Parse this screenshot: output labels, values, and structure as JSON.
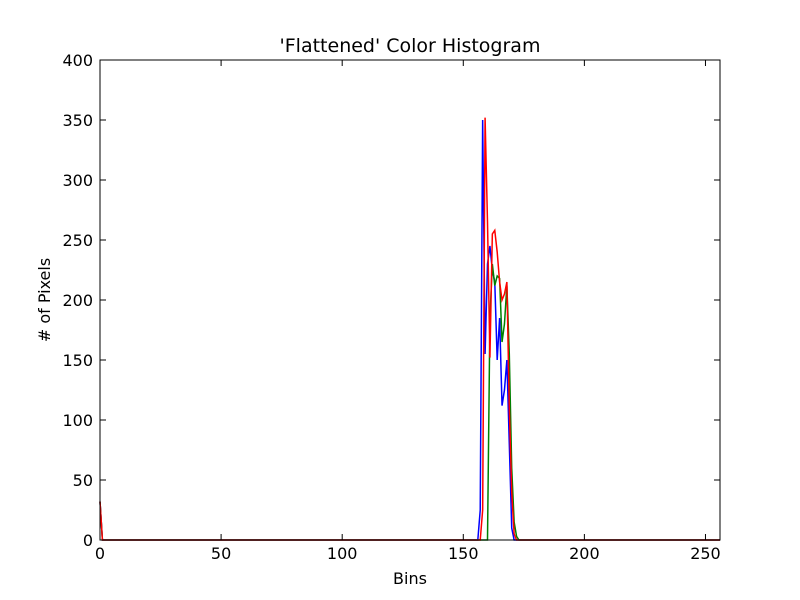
{
  "chart_data": {
    "type": "line",
    "title": "'Flattened' Color Histogram",
    "xlabel": "Bins",
    "ylabel": "# of Pixels",
    "xlim": [
      0,
      256
    ],
    "ylim": [
      0,
      400
    ],
    "xticks": [
      0,
      50,
      100,
      150,
      200,
      250
    ],
    "yticks": [
      0,
      50,
      100,
      150,
      200,
      250,
      300,
      350,
      400
    ],
    "grid": false,
    "legend": false,
    "series": [
      {
        "color": "#0000ff",
        "points": [
          [
            0,
            32
          ],
          [
            1,
            0
          ],
          [
            156,
            0
          ],
          [
            157,
            25
          ],
          [
            158,
            350
          ],
          [
            159,
            155
          ],
          [
            160,
            230
          ],
          [
            161,
            245
          ],
          [
            162,
            225
          ],
          [
            163,
            215
          ],
          [
            164,
            150
          ],
          [
            165,
            185
          ],
          [
            166,
            112
          ],
          [
            167,
            125
          ],
          [
            168,
            150
          ],
          [
            169,
            80
          ],
          [
            170,
            10
          ],
          [
            171,
            0
          ],
          [
            256,
            0
          ]
        ]
      },
      {
        "color": "#008000",
        "points": [
          [
            0,
            32
          ],
          [
            1,
            0
          ],
          [
            160,
            0
          ],
          [
            161,
            185
          ],
          [
            162,
            230
          ],
          [
            163,
            212
          ],
          [
            164,
            220
          ],
          [
            165,
            218
          ],
          [
            166,
            165
          ],
          [
            167,
            180
          ],
          [
            168,
            212
          ],
          [
            169,
            155
          ],
          [
            170,
            60
          ],
          [
            171,
            15
          ],
          [
            172,
            3
          ],
          [
            173,
            0
          ],
          [
            256,
            0
          ]
        ]
      },
      {
        "color": "#ff0000",
        "points": [
          [
            0,
            32
          ],
          [
            1,
            0
          ],
          [
            157,
            0
          ],
          [
            158,
            25
          ],
          [
            159,
            352
          ],
          [
            160,
            265
          ],
          [
            161,
            152
          ],
          [
            162,
            255
          ],
          [
            163,
            258
          ],
          [
            164,
            240
          ],
          [
            165,
            215
          ],
          [
            166,
            200
          ],
          [
            167,
            205
          ],
          [
            168,
            215
          ],
          [
            169,
            110
          ],
          [
            170,
            40
          ],
          [
            171,
            5
          ],
          [
            172,
            0
          ],
          [
            256,
            0
          ]
        ]
      }
    ]
  }
}
